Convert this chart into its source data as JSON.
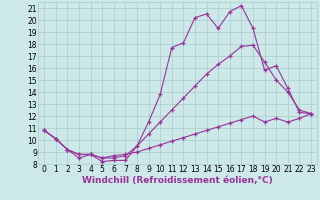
{
  "xlabel": "Windchill (Refroidissement éolien,°C)",
  "background_color": "#cce8e8",
  "grid_color": "#aacccc",
  "line_color": "#993399",
  "xlim": [
    -0.5,
    23.5
  ],
  "ylim": [
    8,
    21.5
  ],
  "xticks": [
    0,
    1,
    2,
    3,
    4,
    5,
    6,
    7,
    8,
    9,
    10,
    11,
    12,
    13,
    14,
    15,
    16,
    17,
    18,
    19,
    20,
    21,
    22,
    23
  ],
  "yticks": [
    8,
    9,
    10,
    11,
    12,
    13,
    14,
    15,
    16,
    17,
    18,
    19,
    20,
    21
  ],
  "line1_x": [
    0,
    1,
    2,
    3,
    4,
    5,
    6,
    7,
    8,
    9,
    10,
    11,
    12,
    13,
    14,
    15,
    16,
    17,
    18,
    19,
    20,
    21,
    22,
    23
  ],
  "line1_y": [
    10.8,
    10.1,
    9.2,
    8.5,
    8.8,
    8.2,
    8.3,
    8.3,
    9.5,
    11.5,
    13.8,
    17.7,
    18.1,
    20.2,
    20.5,
    19.3,
    20.7,
    21.2,
    19.3,
    15.8,
    16.2,
    14.3,
    12.3,
    12.2
  ],
  "line2_x": [
    0,
    1,
    2,
    3,
    4,
    5,
    6,
    7,
    8,
    9,
    10,
    11,
    12,
    13,
    14,
    15,
    16,
    17,
    18,
    19,
    20,
    21,
    22,
    23
  ],
  "line2_y": [
    10.8,
    10.1,
    9.2,
    8.8,
    8.8,
    8.5,
    8.5,
    8.7,
    9.5,
    10.5,
    11.5,
    12.5,
    13.5,
    14.5,
    15.5,
    16.3,
    17.0,
    17.8,
    17.9,
    16.5,
    15.0,
    14.0,
    12.5,
    12.2
  ],
  "line3_x": [
    0,
    1,
    2,
    3,
    4,
    5,
    6,
    7,
    8,
    9,
    10,
    11,
    12,
    13,
    14,
    15,
    16,
    17,
    18,
    19,
    20,
    21,
    22,
    23
  ],
  "line3_y": [
    10.8,
    10.1,
    9.2,
    8.8,
    8.8,
    8.5,
    8.7,
    8.8,
    9.0,
    9.3,
    9.6,
    9.9,
    10.2,
    10.5,
    10.8,
    11.1,
    11.4,
    11.7,
    12.0,
    11.5,
    11.8,
    11.5,
    11.8,
    12.2
  ],
  "marker": "+",
  "markersize": 3,
  "linewidth": 0.8,
  "tick_labelsize": 5.5,
  "xlabel_fontsize": 6.5
}
